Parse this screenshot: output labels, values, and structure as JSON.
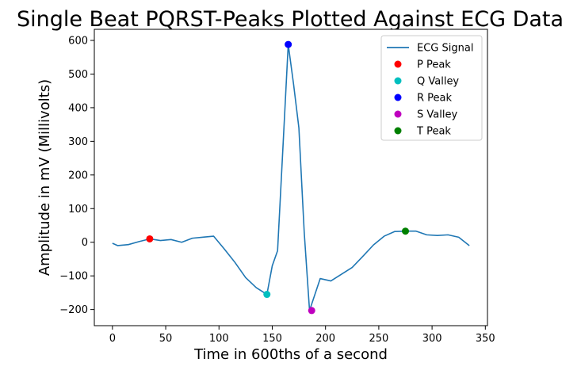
{
  "chart_data": {
    "type": "line",
    "title": "Single Beat PQRST-Peaks Plotted Against ECG Data",
    "xlabel": "Time in 600ths of a second",
    "ylabel": "Amplitude in mV (Millivolts)",
    "xlim": [
      -17,
      352
    ],
    "ylim": [
      -248,
      633
    ],
    "xticks": [
      0,
      50,
      100,
      150,
      200,
      250,
      300,
      350
    ],
    "yticks": [
      -200,
      -100,
      0,
      100,
      200,
      300,
      400,
      500,
      600
    ],
    "grid": false,
    "legend_position": "top-right",
    "series": [
      {
        "name": "ECG Signal",
        "kind": "line",
        "color": "#1f77b4",
        "x": [
          0,
          5,
          15,
          25,
          35,
          45,
          55,
          65,
          75,
          85,
          95,
          105,
          115,
          125,
          135,
          145,
          150,
          155,
          160,
          165,
          170,
          175,
          180,
          185,
          195,
          205,
          215,
          225,
          235,
          245,
          255,
          265,
          275,
          285,
          295,
          305,
          315,
          325,
          335
        ],
        "y": [
          -3,
          -10,
          -7,
          2,
          10,
          5,
          8,
          0,
          12,
          15,
          18,
          -20,
          -60,
          -105,
          -135,
          -155,
          -70,
          -25,
          280,
          588,
          470,
          340,
          30,
          -203,
          -108,
          -115,
          -95,
          -75,
          -42,
          -8,
          18,
          32,
          33,
          33,
          22,
          20,
          22,
          15,
          -10
        ]
      },
      {
        "name": "P Peak",
        "kind": "point",
        "color": "#ff0000",
        "x": [
          35
        ],
        "y": [
          10
        ]
      },
      {
        "name": "Q Valley",
        "kind": "point",
        "color": "#00bfbf",
        "x": [
          145
        ],
        "y": [
          -155
        ]
      },
      {
        "name": "R Peak",
        "kind": "point",
        "color": "#0000ff",
        "x": [
          165
        ],
        "y": [
          588
        ]
      },
      {
        "name": "S Valley",
        "kind": "point",
        "color": "#bf00bf",
        "x": [
          187
        ],
        "y": [
          -203
        ]
      },
      {
        "name": "T Peak",
        "kind": "point",
        "color": "#008000",
        "x": [
          275
        ],
        "y": [
          33
        ]
      }
    ]
  }
}
